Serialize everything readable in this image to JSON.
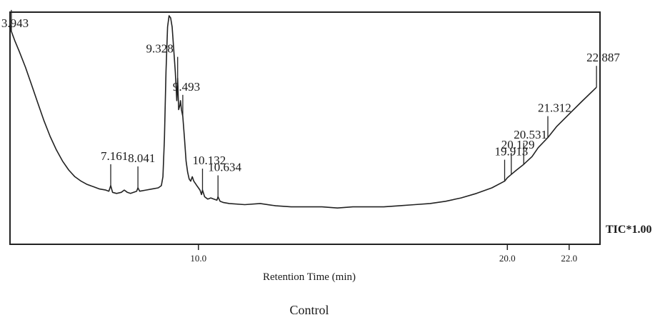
{
  "chart_data": {
    "type": "line",
    "title": "",
    "caption": "Control",
    "xlabel": "Retention Time (min)",
    "ylabel": "",
    "trace_label": "TIC*1.00",
    "xlim": [
      3.9,
      23.0
    ],
    "ylim": [
      0,
      100
    ],
    "grid": false,
    "x_ticks": [
      {
        "value": 10.0,
        "label": "10.0"
      },
      {
        "value": 20.0,
        "label": "20.0"
      },
      {
        "value": 22.0,
        "label": "22.0"
      }
    ],
    "series": [
      {
        "x": [
          3.9,
          3.943,
          4.05,
          4.2,
          4.4,
          4.6,
          4.8,
          5.0,
          5.2,
          5.4,
          5.6,
          5.8,
          6.0,
          6.2,
          6.4,
          6.6,
          6.8,
          7.0,
          7.1,
          7.161,
          7.22,
          7.35,
          7.5,
          7.6,
          7.7,
          7.8,
          7.9,
          8.0,
          8.041,
          8.1,
          8.3,
          8.5,
          8.7,
          8.8,
          8.85,
          8.9,
          8.95,
          9.0,
          9.05,
          9.1,
          9.15,
          9.2,
          9.25,
          9.3,
          9.328,
          9.36,
          9.4,
          9.42,
          9.45,
          9.493,
          9.55,
          9.6,
          9.65,
          9.7,
          9.75,
          9.8,
          9.85,
          9.9,
          9.95,
          10.0,
          10.05,
          10.1,
          10.132,
          10.2,
          10.3,
          10.4,
          10.5,
          10.6,
          10.634,
          10.7,
          10.8,
          11.0,
          11.5,
          12.0,
          12.5,
          13.0,
          13.5,
          14.0,
          14.5,
          15.0,
          15.5,
          16.0,
          16.5,
          17.0,
          17.5,
          18.0,
          18.5,
          19.0,
          19.5,
          19.913,
          20.0,
          20.129,
          20.3,
          20.531,
          20.8,
          21.0,
          21.312,
          21.6,
          22.0,
          22.4,
          22.887
        ],
        "values": [
          97.0,
          93.0,
          89.0,
          84.0,
          77.0,
          69.0,
          61.0,
          53.0,
          46.0,
          40.0,
          35.0,
          31.0,
          28.0,
          26.0,
          24.5,
          23.5,
          22.5,
          22.0,
          21.5,
          24.0,
          21.0,
          20.5,
          21.0,
          22.0,
          21.0,
          20.5,
          21.0,
          21.5,
          23.0,
          21.5,
          22.0,
          22.5,
          23.0,
          24.0,
          28.0,
          45.0,
          75.0,
          95.0,
          100.0,
          99.0,
          95.0,
          85.0,
          75.0,
          62.0,
          72.0,
          58.0,
          60.0,
          62.0,
          58.0,
          55.0,
          45.0,
          35.0,
          30.0,
          27.0,
          26.0,
          28.0,
          26.0,
          25.0,
          24.0,
          23.0,
          22.0,
          20.0,
          22.0,
          19.0,
          18.0,
          18.5,
          18.0,
          17.5,
          19.0,
          17.0,
          16.5,
          16.0,
          15.5,
          16.0,
          15.0,
          14.5,
          14.5,
          14.5,
          14.0,
          14.5,
          14.5,
          14.5,
          15.0,
          15.5,
          16.0,
          17.0,
          18.5,
          20.5,
          23.0,
          26.0,
          27.5,
          29.0,
          31.0,
          33.5,
          37.0,
          41.0,
          45.5,
          50.5,
          56.0,
          61.5,
          68.0
        ]
      }
    ],
    "peak_labels": [
      {
        "x": 3.943,
        "label": "3.943"
      },
      {
        "x": 7.161,
        "label": "7.161"
      },
      {
        "x": 8.041,
        "label": "8.041"
      },
      {
        "x": 9.328,
        "label": "9.328"
      },
      {
        "x": 9.493,
        "label": "9.493"
      },
      {
        "x": 10.132,
        "label": "10.132"
      },
      {
        "x": 10.634,
        "label": "10.634"
      },
      {
        "x": 19.913,
        "label": "19.913"
      },
      {
        "x": 20.129,
        "label": "20.129"
      },
      {
        "x": 20.531,
        "label": "20.531"
      },
      {
        "x": 21.312,
        "label": "21.312"
      },
      {
        "x": 22.887,
        "label": "22.887"
      }
    ]
  }
}
